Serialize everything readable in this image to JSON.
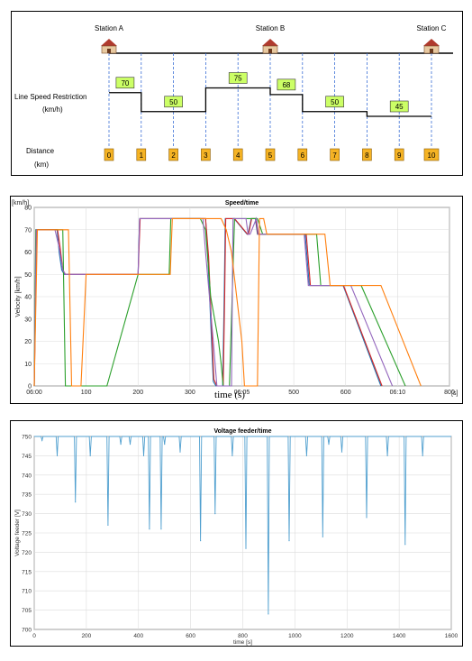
{
  "line_diagram": {
    "stations": [
      {
        "name": "Station A",
        "km": 0
      },
      {
        "name": "Station B",
        "km": 5
      },
      {
        "name": "Station C",
        "km": 10
      }
    ],
    "speed_label": "Line Speed Restriction",
    "speed_unit": "(km/h)",
    "distance_label": "Distance",
    "distance_unit": "(km)",
    "distance_marks": [
      "0",
      "1",
      "2",
      "3",
      "4",
      "5",
      "6",
      "7",
      "8",
      "9",
      "10"
    ],
    "restrictions": [
      {
        "from": 0,
        "to": 1,
        "speed": "70"
      },
      {
        "from": 1,
        "to": 3,
        "speed": "50"
      },
      {
        "from": 3,
        "to": 5,
        "speed": "75"
      },
      {
        "from": 5,
        "to": 6,
        "speed": "68"
      },
      {
        "from": 6,
        "to": 8,
        "speed": "50"
      },
      {
        "from": 8,
        "to": 10,
        "speed": "45"
      }
    ]
  },
  "chart_data": [
    {
      "type": "line",
      "title": "Speed/time",
      "xlabel": "time (s)",
      "ylabel": "Velocity [km/h]",
      "yunit": "[km/h]",
      "xunit": "[s]",
      "xlim": [
        0,
        800
      ],
      "ylim": [
        0,
        80
      ],
      "xticks": [
        "06:00",
        "100",
        "200",
        "300",
        "06:05",
        "500",
        "600",
        "06:10",
        "800"
      ],
      "yticks": [
        0,
        10,
        20,
        30,
        40,
        50,
        60,
        70,
        80
      ],
      "grid": true,
      "series": [
        {
          "color": "#1f77b4",
          "x": [
            0,
            4,
            44,
            48,
            53,
            58,
            200,
            203,
            330,
            334,
            345,
            350,
            363,
            366,
            368,
            385,
            410,
            412,
            418,
            426,
            430,
            522,
            530,
            590,
            595,
            668
          ],
          "y": [
            0,
            70,
            70,
            60,
            52,
            50,
            50,
            75,
            75,
            60,
            2,
            0,
            0,
            40,
            75,
            75,
            68,
            68,
            75,
            75,
            68,
            68,
            45,
            45,
            45,
            0
          ]
        },
        {
          "color": "#d62728",
          "x": [
            0,
            5,
            45,
            50,
            55,
            60,
            200,
            204,
            330,
            336,
            346,
            352,
            364,
            367,
            369,
            386,
            411,
            413,
            419,
            427,
            431,
            524,
            532,
            590,
            596,
            670
          ],
          "y": [
            0,
            70,
            70,
            62,
            52,
            50,
            50,
            75,
            75,
            58,
            3,
            0,
            0,
            42,
            75,
            75,
            68,
            68,
            75,
            75,
            68,
            68,
            45,
            45,
            45,
            0
          ]
        },
        {
          "color": "#2ca02c",
          "x": [
            0,
            3,
            30,
            36,
            40,
            46,
            55,
            60,
            62,
            140,
            200,
            260,
            263,
            315,
            320,
            330,
            340,
            355,
            360,
            364,
            376,
            382,
            386,
            392,
            420,
            430,
            440,
            544,
            552,
            620,
            630,
            715
          ],
          "y": [
            0,
            70,
            70,
            70,
            70,
            70,
            70,
            0,
            0,
            0,
            50,
            50,
            75,
            75,
            75,
            70,
            40,
            20,
            10,
            0,
            0,
            45,
            75,
            75,
            75,
            75,
            68,
            68,
            45,
            45,
            45,
            0
          ]
        },
        {
          "color": "#9467bd",
          "x": [
            0,
            4,
            40,
            48,
            55,
            60,
            200,
            203,
            325,
            330,
            345,
            352,
            356,
            380,
            383,
            408,
            412,
            416,
            428,
            432,
            520,
            528,
            610,
            690
          ],
          "y": [
            0,
            70,
            70,
            62,
            52,
            50,
            50,
            75,
            75,
            60,
            20,
            0,
            0,
            0,
            75,
            75,
            68,
            68,
            75,
            68,
            68,
            45,
            45,
            0
          ]
        },
        {
          "color": "#ff7f0e",
          "x": [
            0,
            6,
            50,
            60,
            66,
            72,
            90,
            100,
            140,
            145,
            170,
            200,
            262,
            266,
            325,
            340,
            360,
            370,
            380,
            400,
            405,
            430,
            434,
            442,
            448,
            560,
            570,
            660,
            668,
            745
          ],
          "y": [
            0,
            70,
            70,
            70,
            70,
            0,
            0,
            50,
            50,
            50,
            50,
            50,
            50,
            75,
            75,
            75,
            75,
            70,
            60,
            20,
            0,
            0,
            75,
            75,
            68,
            68,
            45,
            45,
            45,
            0
          ]
        }
      ]
    },
    {
      "type": "line",
      "title": "Voltage feeder/time",
      "xlabel": "time [s]",
      "ylabel": "Voltage feeder [V]",
      "xlim": [
        0,
        1600
      ],
      "ylim": [
        700,
        750
      ],
      "xticks": [
        0,
        200,
        400,
        600,
        800,
        1000,
        1200,
        1400,
        1600
      ],
      "yticks": [
        700,
        705,
        710,
        715,
        720,
        725,
        730,
        735,
        740,
        745,
        750
      ],
      "grid": true,
      "series": [
        {
          "color": "#4f9fcf",
          "dips": [
            {
              "t": 30,
              "v": 749
            },
            {
              "t": 88,
              "v": 745
            },
            {
              "t": 158,
              "v": 733
            },
            {
              "t": 215,
              "v": 745
            },
            {
              "t": 283,
              "v": 727
            },
            {
              "t": 332,
              "v": 748
            },
            {
              "t": 368,
              "v": 748
            },
            {
              "t": 420,
              "v": 745
            },
            {
              "t": 442,
              "v": 726
            },
            {
              "t": 487,
              "v": 726
            },
            {
              "t": 500,
              "v": 748
            },
            {
              "t": 560,
              "v": 746
            },
            {
              "t": 638,
              "v": 723
            },
            {
              "t": 694,
              "v": 730
            },
            {
              "t": 760,
              "v": 745
            },
            {
              "t": 812,
              "v": 721
            },
            {
              "t": 898,
              "v": 704
            },
            {
              "t": 978,
              "v": 723
            },
            {
              "t": 1045,
              "v": 745
            },
            {
              "t": 1107,
              "v": 724
            },
            {
              "t": 1130,
              "v": 748
            },
            {
              "t": 1180,
              "v": 746
            },
            {
              "t": 1275,
              "v": 729
            },
            {
              "t": 1355,
              "v": 745
            },
            {
              "t": 1423,
              "v": 722
            },
            {
              "t": 1490,
              "v": 745
            }
          ]
        }
      ]
    }
  ]
}
